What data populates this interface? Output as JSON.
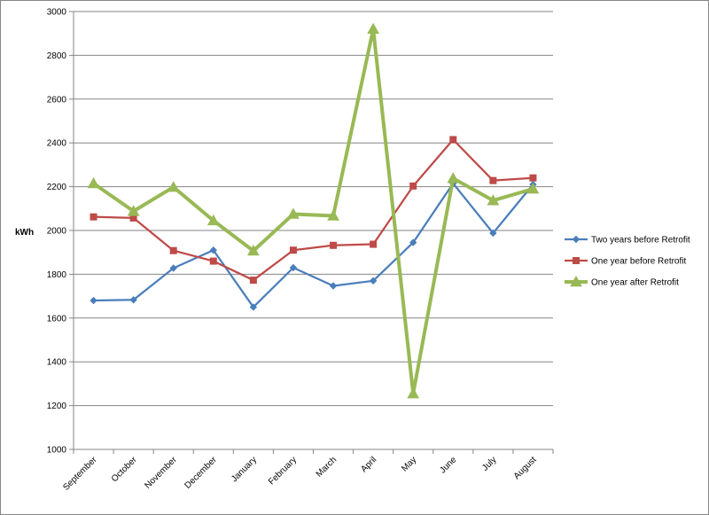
{
  "chart_data": {
    "type": "line",
    "title": "",
    "xlabel": "",
    "ylabel": "kWh",
    "ylim": [
      1000,
      3000
    ],
    "yticks": [
      1000,
      1200,
      1400,
      1600,
      1800,
      2000,
      2200,
      2400,
      2600,
      2800,
      3000
    ],
    "grid": true,
    "legend_position": "right",
    "categories": [
      "September",
      "October",
      "November",
      "December",
      "January",
      "February",
      "March",
      "April",
      "May",
      "June",
      "July",
      "August"
    ],
    "series": [
      {
        "name": "Two years before Retrofit",
        "color": "#4A7EBB",
        "marker": "diamond",
        "values": [
          1680,
          1683,
          1828,
          1910,
          1650,
          1830,
          1747,
          1770,
          1945,
          2215,
          1988,
          2210
        ]
      },
      {
        "name": "One year before Retrofit",
        "color": "#BE4B48",
        "marker": "square",
        "values": [
          2062,
          2057,
          1908,
          1860,
          1773,
          1910,
          1932,
          1937,
          2203,
          2415,
          2228,
          2240
        ]
      },
      {
        "name": "One year after Retrofit",
        "color": "#98B954",
        "marker": "triangle",
        "values": [
          2215,
          2088,
          2198,
          2045,
          1907,
          2075,
          2067,
          2920,
          1255,
          2238,
          2137,
          2190
        ]
      }
    ]
  }
}
